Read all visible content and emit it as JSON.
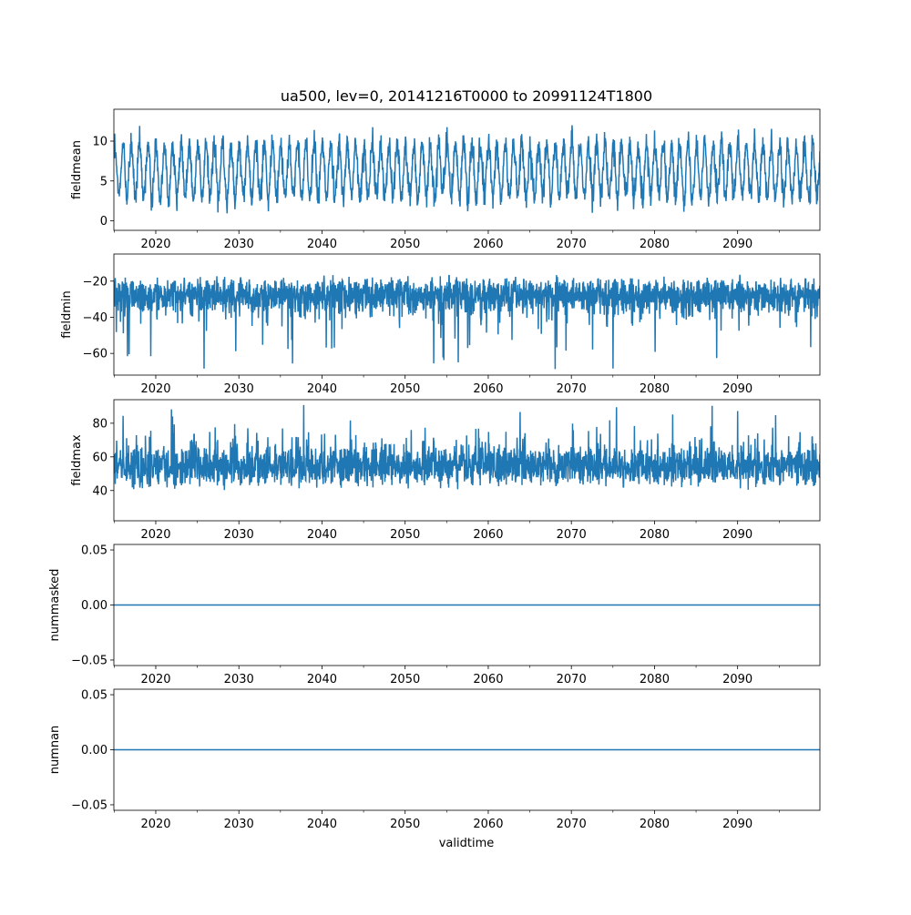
{
  "figure": {
    "title": "ua500, lev=0, 20141216T0000 to 20991124T1800",
    "xlabel": "validtime",
    "line_color": "#1f77b4"
  },
  "chart_data": [
    {
      "type": "line",
      "ylabel": "fieldmean",
      "xlim": [
        2014.96,
        2099.9
      ],
      "ylim": [
        -1.2,
        14.0
      ],
      "xticks": [
        2020,
        2030,
        2040,
        2050,
        2060,
        2070,
        2080,
        2090
      ],
      "xtick_labels": [
        "2020",
        "2030",
        "2040",
        "2050",
        "2060",
        "2070",
        "2080",
        "2090"
      ],
      "yticks": [
        0,
        5,
        10
      ],
      "ytick_labels": [
        "0",
        "5",
        "10"
      ],
      "series": [
        {
          "pattern": "seasonal",
          "center": 6.3,
          "seasonal_amp": 3.3,
          "noise": 1.4,
          "min": -0.8,
          "max": 13.8
        }
      ]
    },
    {
      "type": "line",
      "ylabel": "fieldmin",
      "xlim": [
        2014.96,
        2099.9
      ],
      "ylim": [
        -72.0,
        -5.0
      ],
      "xticks": [
        2020,
        2030,
        2040,
        2050,
        2060,
        2070,
        2080,
        2090
      ],
      "xtick_labels": [
        "2020",
        "2030",
        "2040",
        "2050",
        "2060",
        "2070",
        "2080",
        "2090"
      ],
      "yticks": [
        -60,
        -40,
        -20
      ],
      "ytick_labels": [
        "−60",
        "−40",
        "−20"
      ],
      "series": [
        {
          "pattern": "noisy-spiky",
          "center": -26,
          "band": 9,
          "spike_direction": "down",
          "min": -70,
          "max": -9
        }
      ]
    },
    {
      "type": "line",
      "ylabel": "fieldmax",
      "xlim": [
        2014.96,
        2099.9
      ],
      "ylim": [
        22.0,
        94.0
      ],
      "xticks": [
        2020,
        2030,
        2040,
        2050,
        2060,
        2070,
        2080,
        2090
      ],
      "xtick_labels": [
        "2020",
        "2030",
        "2040",
        "2050",
        "2060",
        "2070",
        "2080",
        "2090"
      ],
      "yticks": [
        40,
        60,
        80
      ],
      "ytick_labels": [
        "40",
        "60",
        "80"
      ],
      "series": [
        {
          "pattern": "noisy-spiky",
          "center": 52,
          "band": 11,
          "spike_direction": "up",
          "min": 25,
          "max": 91
        }
      ]
    },
    {
      "type": "line",
      "ylabel": "nummasked",
      "xlim": [
        2014.96,
        2099.9
      ],
      "ylim": [
        -0.055,
        0.055
      ],
      "xticks": [
        2020,
        2030,
        2040,
        2050,
        2060,
        2070,
        2080,
        2090
      ],
      "xtick_labels": [
        "2020",
        "2030",
        "2040",
        "2050",
        "2060",
        "2070",
        "2080",
        "2090"
      ],
      "yticks": [
        -0.05,
        0.0,
        0.05
      ],
      "ytick_labels": [
        "−0.05",
        "0.00",
        "0.05"
      ],
      "series": [
        {
          "pattern": "constant",
          "value": 0.0
        }
      ]
    },
    {
      "type": "line",
      "ylabel": "numnan",
      "xlim": [
        2014.96,
        2099.9
      ],
      "ylim": [
        -0.055,
        0.055
      ],
      "xticks": [
        2020,
        2030,
        2040,
        2050,
        2060,
        2070,
        2080,
        2090
      ],
      "xtick_labels": [
        "2020",
        "2030",
        "2040",
        "2050",
        "2060",
        "2070",
        "2080",
        "2090"
      ],
      "yticks": [
        -0.05,
        0.0,
        0.05
      ],
      "ytick_labels": [
        "−0.05",
        "0.00",
        "0.05"
      ],
      "series": [
        {
          "pattern": "constant",
          "value": 0.0
        }
      ]
    }
  ]
}
